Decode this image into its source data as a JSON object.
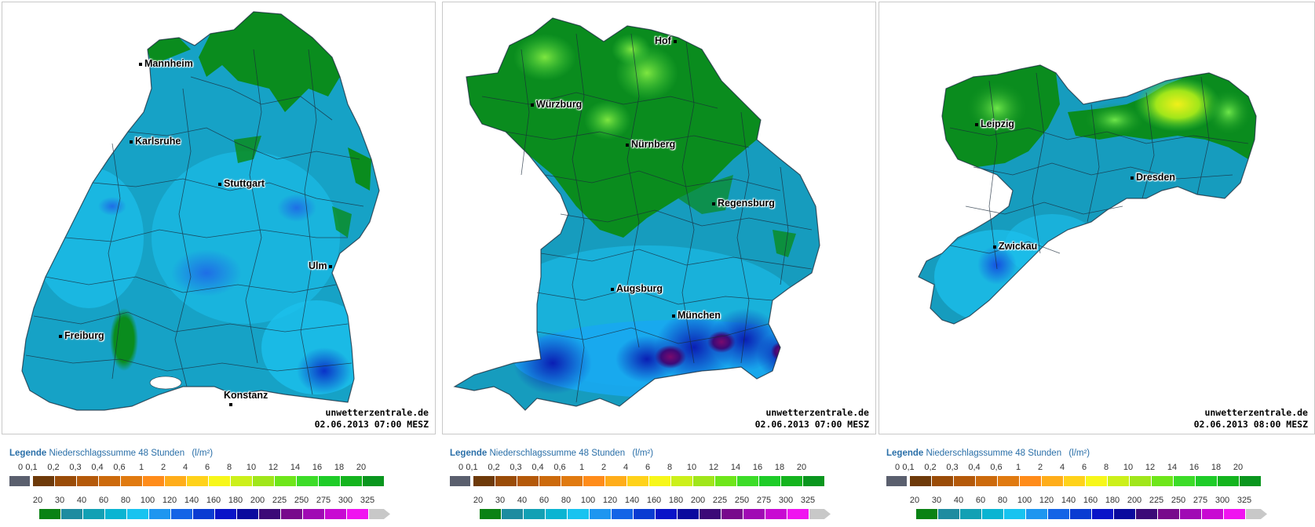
{
  "panels": [
    {
      "region": "baden-wuerttemberg",
      "credit_site": "unwetterzentrale.de",
      "credit_time": "02.06.2013 07:00 MESZ",
      "cities": [
        {
          "name": "Mannheim"
        },
        {
          "name": "Karlsruhe"
        },
        {
          "name": "Stuttgart"
        },
        {
          "name": "Ulm"
        },
        {
          "name": "Freiburg"
        },
        {
          "name": "Konstanz"
        }
      ]
    },
    {
      "region": "bayern",
      "credit_site": "unwetterzentrale.de",
      "credit_time": "02.06.2013 07:00 MESZ",
      "cities": [
        {
          "name": "Hof"
        },
        {
          "name": "Würzburg"
        },
        {
          "name": "Nürnberg"
        },
        {
          "name": "Regensburg"
        },
        {
          "name": "Augsburg"
        },
        {
          "name": "München"
        }
      ]
    },
    {
      "region": "sachsen",
      "credit_site": "unwetterzentrale.de",
      "credit_time": "02.06.2013 08:00 MESZ",
      "cities": [
        {
          "name": "Leipzig"
        },
        {
          "name": "Dresden"
        },
        {
          "name": "Zwickau"
        }
      ]
    }
  ],
  "legend": {
    "label": "Legende",
    "title": "Niederschlagssumme 48 Stunden",
    "unit": "(l/m²)",
    "row1_ticks": [
      "0",
      "0,1",
      "0,2",
      "0,3",
      "0,4",
      "0,6",
      "1",
      "2",
      "4",
      "6",
      "8",
      "10",
      "12",
      "14",
      "16",
      "18",
      "20"
    ],
    "row1_colors": [
      "#5a5f6e",
      "#6e3a0a",
      "#9a4c08",
      "#b4590a",
      "#cc6a0c",
      "#e07a10",
      "#ff8c1a",
      "#ffad1a",
      "#ffd21a",
      "#f7f71a",
      "#ccf01a",
      "#a0e61a",
      "#6ee61a",
      "#3cdc28",
      "#1ecc28",
      "#14b41e",
      "#0a961e"
    ],
    "row2_ticks": [
      "20",
      "30",
      "40",
      "60",
      "80",
      "100",
      "120",
      "140",
      "160",
      "180",
      "200",
      "225",
      "250",
      "275",
      "300",
      "325"
    ],
    "row2_colors": [
      "#0a8214",
      "#1e8ca0",
      "#12a0b4",
      "#0ab4d2",
      "#18c3f0",
      "#1e96f0",
      "#1464e6",
      "#0a3cd2",
      "#0a14c8",
      "#0a0a9e",
      "#3c0a78",
      "#780a8c",
      "#a00ab4",
      "#c80ad2",
      "#f014f0",
      "#c8c8c8"
    ]
  }
}
